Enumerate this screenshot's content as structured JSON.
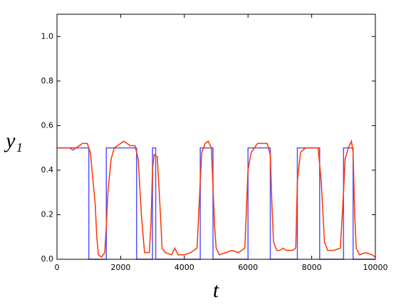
{
  "chart_data": {
    "type": "line",
    "xlabel": "t",
    "ylabel": "y₁",
    "xlim": [
      0,
      10000
    ],
    "ylim": [
      0,
      1.1
    ],
    "xticks": [
      0,
      2000,
      4000,
      6000,
      8000,
      10000
    ],
    "yticks": [
      {
        "value": 0,
        "label": "0.0"
      },
      {
        "value": 0.2,
        "label": "0.2"
      },
      {
        "value": 0.4,
        "label": "0.4"
      },
      {
        "value": 0.6,
        "label": "0.6"
      },
      {
        "value": 0.8,
        "label": "0.8"
      },
      {
        "value": 1.0,
        "label": "1.0"
      }
    ],
    "grid": false,
    "series": [
      {
        "color": "#5555ff",
        "x": [
          0,
          1000,
          1000,
          1550,
          1550,
          2500,
          2500,
          3000,
          3000,
          3100,
          3100,
          4500,
          4500,
          4900,
          4900,
          6000,
          6000,
          6700,
          6700,
          7550,
          7550,
          8250,
          8250,
          9000,
          9000,
          9300,
          9300,
          10000
        ],
        "values": [
          0.5,
          0.5,
          0,
          0,
          0.5,
          0.5,
          0,
          0,
          0.5,
          0.5,
          0,
          0,
          0.5,
          0.5,
          0,
          0,
          0.5,
          0.5,
          0,
          0,
          0.5,
          0.5,
          0,
          0,
          0.5,
          0.5,
          0,
          0
        ]
      },
      {
        "color": "#ff3300",
        "x": [
          0,
          200,
          400,
          500,
          600,
          800,
          950,
          1050,
          1100,
          1200,
          1250,
          1300,
          1400,
          1500,
          1550,
          1600,
          1700,
          1800,
          2000,
          2100,
          2300,
          2450,
          2550,
          2650,
          2750,
          2900,
          2950,
          3000,
          3050,
          3150,
          3250,
          3300,
          3400,
          3600,
          3700,
          3800,
          3900,
          4000,
          4200,
          4400,
          4500,
          4550,
          4650,
          4750,
          4850,
          4950,
          5000,
          5100,
          5300,
          5500,
          5700,
          5900,
          6000,
          6100,
          6300,
          6500,
          6600,
          6700,
          6750,
          6800,
          6900,
          7000,
          7100,
          7200,
          7400,
          7500,
          7550,
          7650,
          7800,
          8000,
          8200,
          8300,
          8400,
          8500,
          8700,
          8900,
          9000,
          9050,
          9150,
          9250,
          9300,
          9350,
          9400,
          9500,
          9700,
          9900,
          10000
        ],
        "values": [
          0.5,
          0.5,
          0.5,
          0.49,
          0.5,
          0.52,
          0.52,
          0.48,
          0.4,
          0.25,
          0.1,
          0.02,
          0.01,
          0.03,
          0.15,
          0.3,
          0.45,
          0.5,
          0.52,
          0.53,
          0.51,
          0.51,
          0.45,
          0.2,
          0.03,
          0.03,
          0.15,
          0.4,
          0.47,
          0.46,
          0.2,
          0.05,
          0.03,
          0.02,
          0.05,
          0.02,
          0.02,
          0.02,
          0.03,
          0.05,
          0.35,
          0.48,
          0.52,
          0.53,
          0.5,
          0.15,
          0.05,
          0.02,
          0.03,
          0.04,
          0.03,
          0.05,
          0.4,
          0.48,
          0.52,
          0.52,
          0.52,
          0.47,
          0.25,
          0.08,
          0.04,
          0.04,
          0.05,
          0.04,
          0.04,
          0.05,
          0.35,
          0.48,
          0.5,
          0.5,
          0.5,
          0.35,
          0.08,
          0.04,
          0.04,
          0.05,
          0.3,
          0.45,
          0.5,
          0.53,
          0.48,
          0.2,
          0.05,
          0.02,
          0.03,
          0.02,
          0.01
        ]
      }
    ]
  }
}
